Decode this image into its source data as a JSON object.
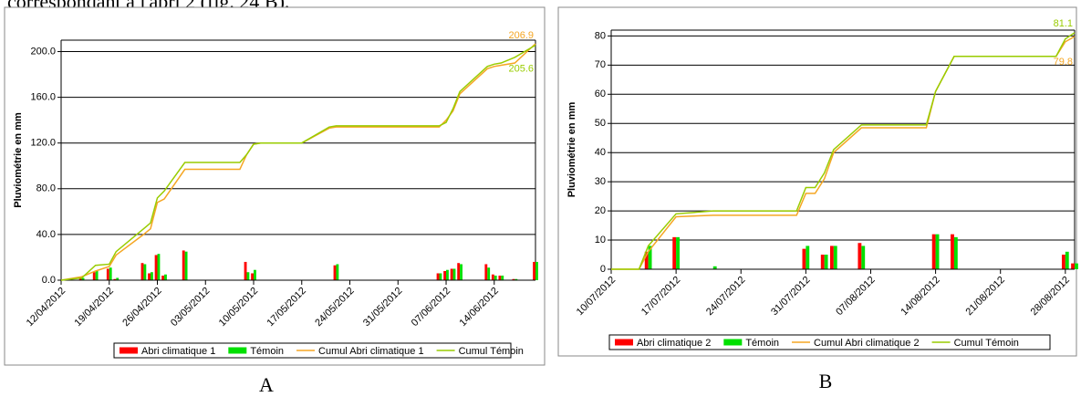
{
  "header_text": "correspondant à l'abri 2 (fig. 24 B).",
  "chart_data": [
    {
      "type": "combo",
      "caption": "A",
      "ylabel": "Pluviométrie en mm",
      "grid": true,
      "legend": "bottom",
      "x": [
        "12/04/2012",
        "15/04/2012",
        "17/04/2012",
        "19/04/2012",
        "20/04/2012",
        "24/04/2012",
        "25/04/2012",
        "26/04/2012",
        "27/04/2012",
        "30/04/2012",
        "08/05/2012",
        "09/05/2012",
        "10/05/2012",
        "11/05/2012",
        "17/05/2012",
        "21/05/2012",
        "22/05/2012",
        "06/06/2012",
        "07/06/2012",
        "08/06/2012",
        "09/06/2012",
        "13/06/2012",
        "14/06/2012",
        "15/06/2012",
        "17/06/2012",
        "20/06/2012"
      ],
      "xlim": [
        "12/04/2012",
        "20/06/2012"
      ],
      "xticks": [
        "12/04/2012",
        "19/04/2012",
        "26/04/2012",
        "03/05/2012",
        "10/05/2012",
        "17/05/2012",
        "24/05/2012",
        "31/05/2012",
        "07/06/2012",
        "14/06/2012"
      ],
      "ylim": [
        0,
        210
      ],
      "yticks": [
        {
          "value": 0,
          "label": "0.0"
        },
        {
          "value": 40,
          "label": "40.0"
        },
        {
          "value": 80,
          "label": "80.0"
        },
        {
          "value": 120,
          "label": "120.0"
        },
        {
          "value": 160,
          "label": "160.0"
        },
        {
          "value": 200,
          "label": "200.0"
        }
      ],
      "series": [
        {
          "name": "Abri climatique 1",
          "type": "bar",
          "color": "#ff0000",
          "values": [
            0,
            3,
            7,
            10,
            1,
            15,
            6,
            22,
            4,
            26,
            0,
            16,
            6,
            0,
            0,
            0,
            13,
            6,
            8,
            10,
            15,
            14,
            5,
            4,
            1,
            16
          ]
        },
        {
          "name": "Témoin",
          "type": "bar",
          "color": "#00e000",
          "values": [
            0,
            2,
            8,
            11,
            2,
            14,
            7,
            23,
            5,
            25,
            0,
            7,
            9,
            0,
            0,
            0,
            14,
            6,
            9,
            10,
            14,
            11,
            4,
            4,
            1,
            16
          ]
        },
        {
          "name": "Cumul Abri climatique 1",
          "type": "line",
          "color": "#f5a623",
          "values": [
            0,
            3,
            8,
            12,
            22,
            40,
            45,
            68,
            71,
            97,
            97,
            110,
            119,
            120,
            120,
            133,
            134,
            134,
            140,
            148,
            163,
            185,
            187,
            188,
            190,
            206.9
          ],
          "value_labels": [
            null,
            null,
            null,
            null,
            null,
            null,
            null,
            null,
            null,
            null,
            null,
            null,
            null,
            null,
            null,
            null,
            null,
            null,
            null,
            null,
            null,
            null,
            null,
            null,
            null,
            "206.9"
          ]
        },
        {
          "name": "Cumul Témoin",
          "type": "line",
          "color": "#99cc00",
          "values": [
            0,
            2,
            13,
            14,
            25,
            45,
            50,
            72,
            78,
            103,
            103,
            110,
            119,
            120,
            120,
            134,
            135,
            135,
            138,
            150,
            165,
            187,
            189,
            190,
            195,
            205.6
          ],
          "value_labels": [
            null,
            null,
            null,
            null,
            null,
            null,
            null,
            null,
            null,
            null,
            null,
            null,
            null,
            null,
            null,
            null,
            null,
            null,
            null,
            null,
            null,
            null,
            null,
            null,
            null,
            "205.6"
          ]
        }
      ]
    },
    {
      "type": "combo",
      "caption": "B",
      "ylabel": "Pluviométrie en mm",
      "grid": true,
      "legend": "bottom",
      "x": [
        "10/07/2012",
        "13/07/2012",
        "14/07/2012",
        "17/07/2012",
        "21/07/2012",
        "30/07/2012",
        "31/07/2012",
        "01/08/2012",
        "02/08/2012",
        "03/08/2012",
        "06/08/2012",
        "13/08/2012",
        "14/08/2012",
        "16/08/2012",
        "27/08/2012",
        "28/08/2012",
        "29/08/2012"
      ],
      "xlim": [
        "10/07/2012",
        "29/08/2012"
      ],
      "xticks": [
        "10/07/2012",
        "17/07/2012",
        "24/07/2012",
        "31/07/2012",
        "07/08/2012",
        "14/08/2012",
        "21/08/2012",
        "28/08/2012"
      ],
      "ylim": [
        0,
        82
      ],
      "yticks": [
        0,
        10,
        20,
        30,
        40,
        50,
        60,
        70,
        80
      ],
      "series": [
        {
          "name": "Abri climatique 2",
          "type": "bar",
          "color": "#ff0000",
          "values": [
            0,
            0,
            6,
            11,
            0,
            0,
            7,
            0,
            5,
            8,
            9,
            0,
            12,
            12,
            0,
            5,
            2
          ]
        },
        {
          "name": "Témoin",
          "type": "bar",
          "color": "#00e000",
          "values": [
            0,
            0,
            8,
            11,
            1,
            0,
            8,
            0,
            5,
            8,
            8,
            0,
            12,
            11,
            0,
            6,
            2
          ]
        },
        {
          "name": "Cumul Abri climatique 2",
          "type": "line",
          "color": "#f5a623",
          "values": [
            0,
            0,
            6,
            18,
            18.5,
            18.5,
            26,
            26,
            31,
            40,
            48.5,
            48.5,
            61,
            73,
            73,
            78,
            79.8
          ],
          "value_labels": [
            null,
            null,
            null,
            null,
            null,
            null,
            null,
            null,
            null,
            null,
            null,
            null,
            null,
            null,
            null,
            null,
            "79.8"
          ]
        },
        {
          "name": "Cumul Témoin",
          "type": "line",
          "color": "#99cc00",
          "values": [
            0,
            0,
            8,
            19,
            20,
            20,
            28,
            28,
            33,
            41,
            49.5,
            49.5,
            61,
            73,
            73,
            79,
            81.1
          ],
          "value_labels": [
            null,
            null,
            null,
            null,
            null,
            null,
            null,
            null,
            null,
            null,
            null,
            null,
            null,
            null,
            null,
            null,
            "81.1"
          ]
        }
      ]
    }
  ]
}
